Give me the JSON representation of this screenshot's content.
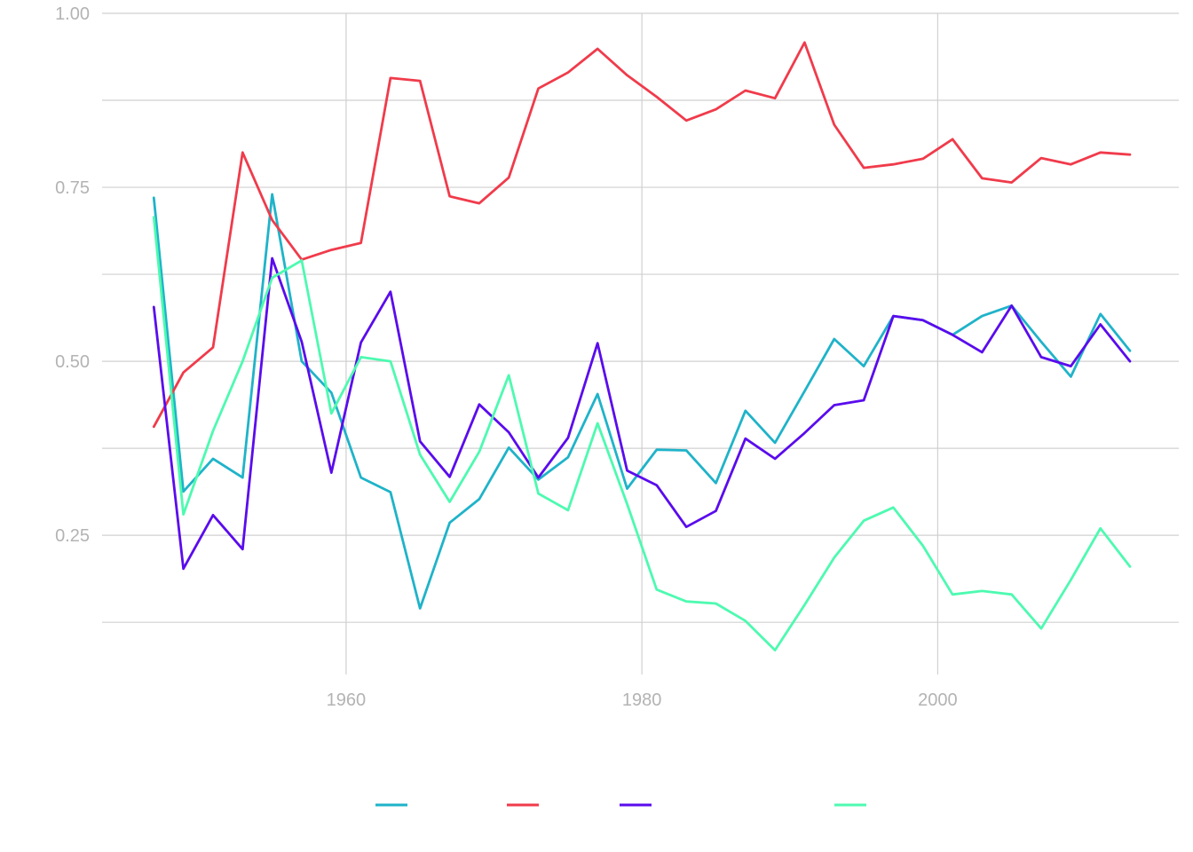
{
  "chart_data": {
    "type": "line",
    "title": "",
    "xlabel": "",
    "ylabel": "",
    "xlim": [
      1943.5,
      2016.3
    ],
    "ylim": [
      0.05,
      1.0
    ],
    "x_ticks": [
      1960,
      1980,
      2000
    ],
    "x_tick_labels": [
      "1960",
      "1980",
      "2000"
    ],
    "y_ticks": [
      0.25,
      0.5,
      0.75,
      1.0
    ],
    "y_tick_labels": [
      "0.25",
      "0.50",
      "0.75",
      "1.00"
    ],
    "grid": true,
    "legend_position": "bottom",
    "x": [
      1947,
      1949,
      1951,
      1953,
      1955,
      1957,
      1959,
      1961,
      1963,
      1965,
      1967,
      1969,
      1971,
      1973,
      1975,
      1977,
      1979,
      1981,
      1983,
      1985,
      1987,
      1989,
      1991,
      1993,
      1995,
      1997,
      1999,
      2001,
      2003,
      2005,
      2007,
      2009,
      2011,
      2013
    ],
    "series": [
      {
        "color": "#1fb3c9",
        "values": [
          0.735,
          0.313,
          0.36,
          0.333,
          0.74,
          0.5,
          0.455,
          0.333,
          0.312,
          0.145,
          0.268,
          0.302,
          0.376,
          0.33,
          0.362,
          0.453,
          0.317,
          0.373,
          0.372,
          0.325,
          0.429,
          0.383,
          0.457,
          0.532,
          0.493,
          0.565,
          0.559,
          0.538,
          0.565,
          0.58,
          0.528,
          0.478,
          0.568,
          0.515
        ]
      },
      {
        "color": "#f03b4b",
        "values": [
          0.406,
          0.484,
          0.52,
          0.8,
          0.703,
          0.646,
          0.66,
          0.67,
          0.907,
          0.903,
          0.737,
          0.727,
          0.764,
          0.892,
          0.915,
          0.949,
          0.911,
          0.88,
          0.846,
          0.862,
          0.889,
          0.878,
          0.958,
          0.84,
          0.778,
          0.783,
          0.791,
          0.819,
          0.763,
          0.757,
          0.792,
          0.783,
          0.8,
          0.797
        ]
      },
      {
        "color": "#5a0bed",
        "values": [
          0.578,
          0.202,
          0.279,
          0.23,
          0.648,
          0.528,
          0.34,
          0.527,
          0.6,
          0.385,
          0.334,
          0.438,
          0.398,
          0.333,
          0.39,
          0.526,
          0.343,
          0.322,
          0.262,
          0.285,
          0.389,
          0.36,
          0.397,
          0.437,
          0.444,
          0.565,
          0.559,
          0.538,
          0.513,
          0.58,
          0.506,
          0.493,
          0.553,
          0.5
        ]
      },
      {
        "color": "#4dfab0",
        "values": [
          0.707,
          0.28,
          0.4,
          0.5,
          0.62,
          0.645,
          0.425,
          0.506,
          0.5,
          0.366,
          0.298,
          0.37,
          0.48,
          0.31,
          0.286,
          0.411,
          0.295,
          0.172,
          0.155,
          0.152,
          0.127,
          0.085,
          0.15,
          0.218,
          0.271,
          0.29,
          0.235,
          0.165,
          0.17,
          0.165,
          0.116,
          0.186,
          0.26,
          0.205
        ]
      }
    ]
  }
}
